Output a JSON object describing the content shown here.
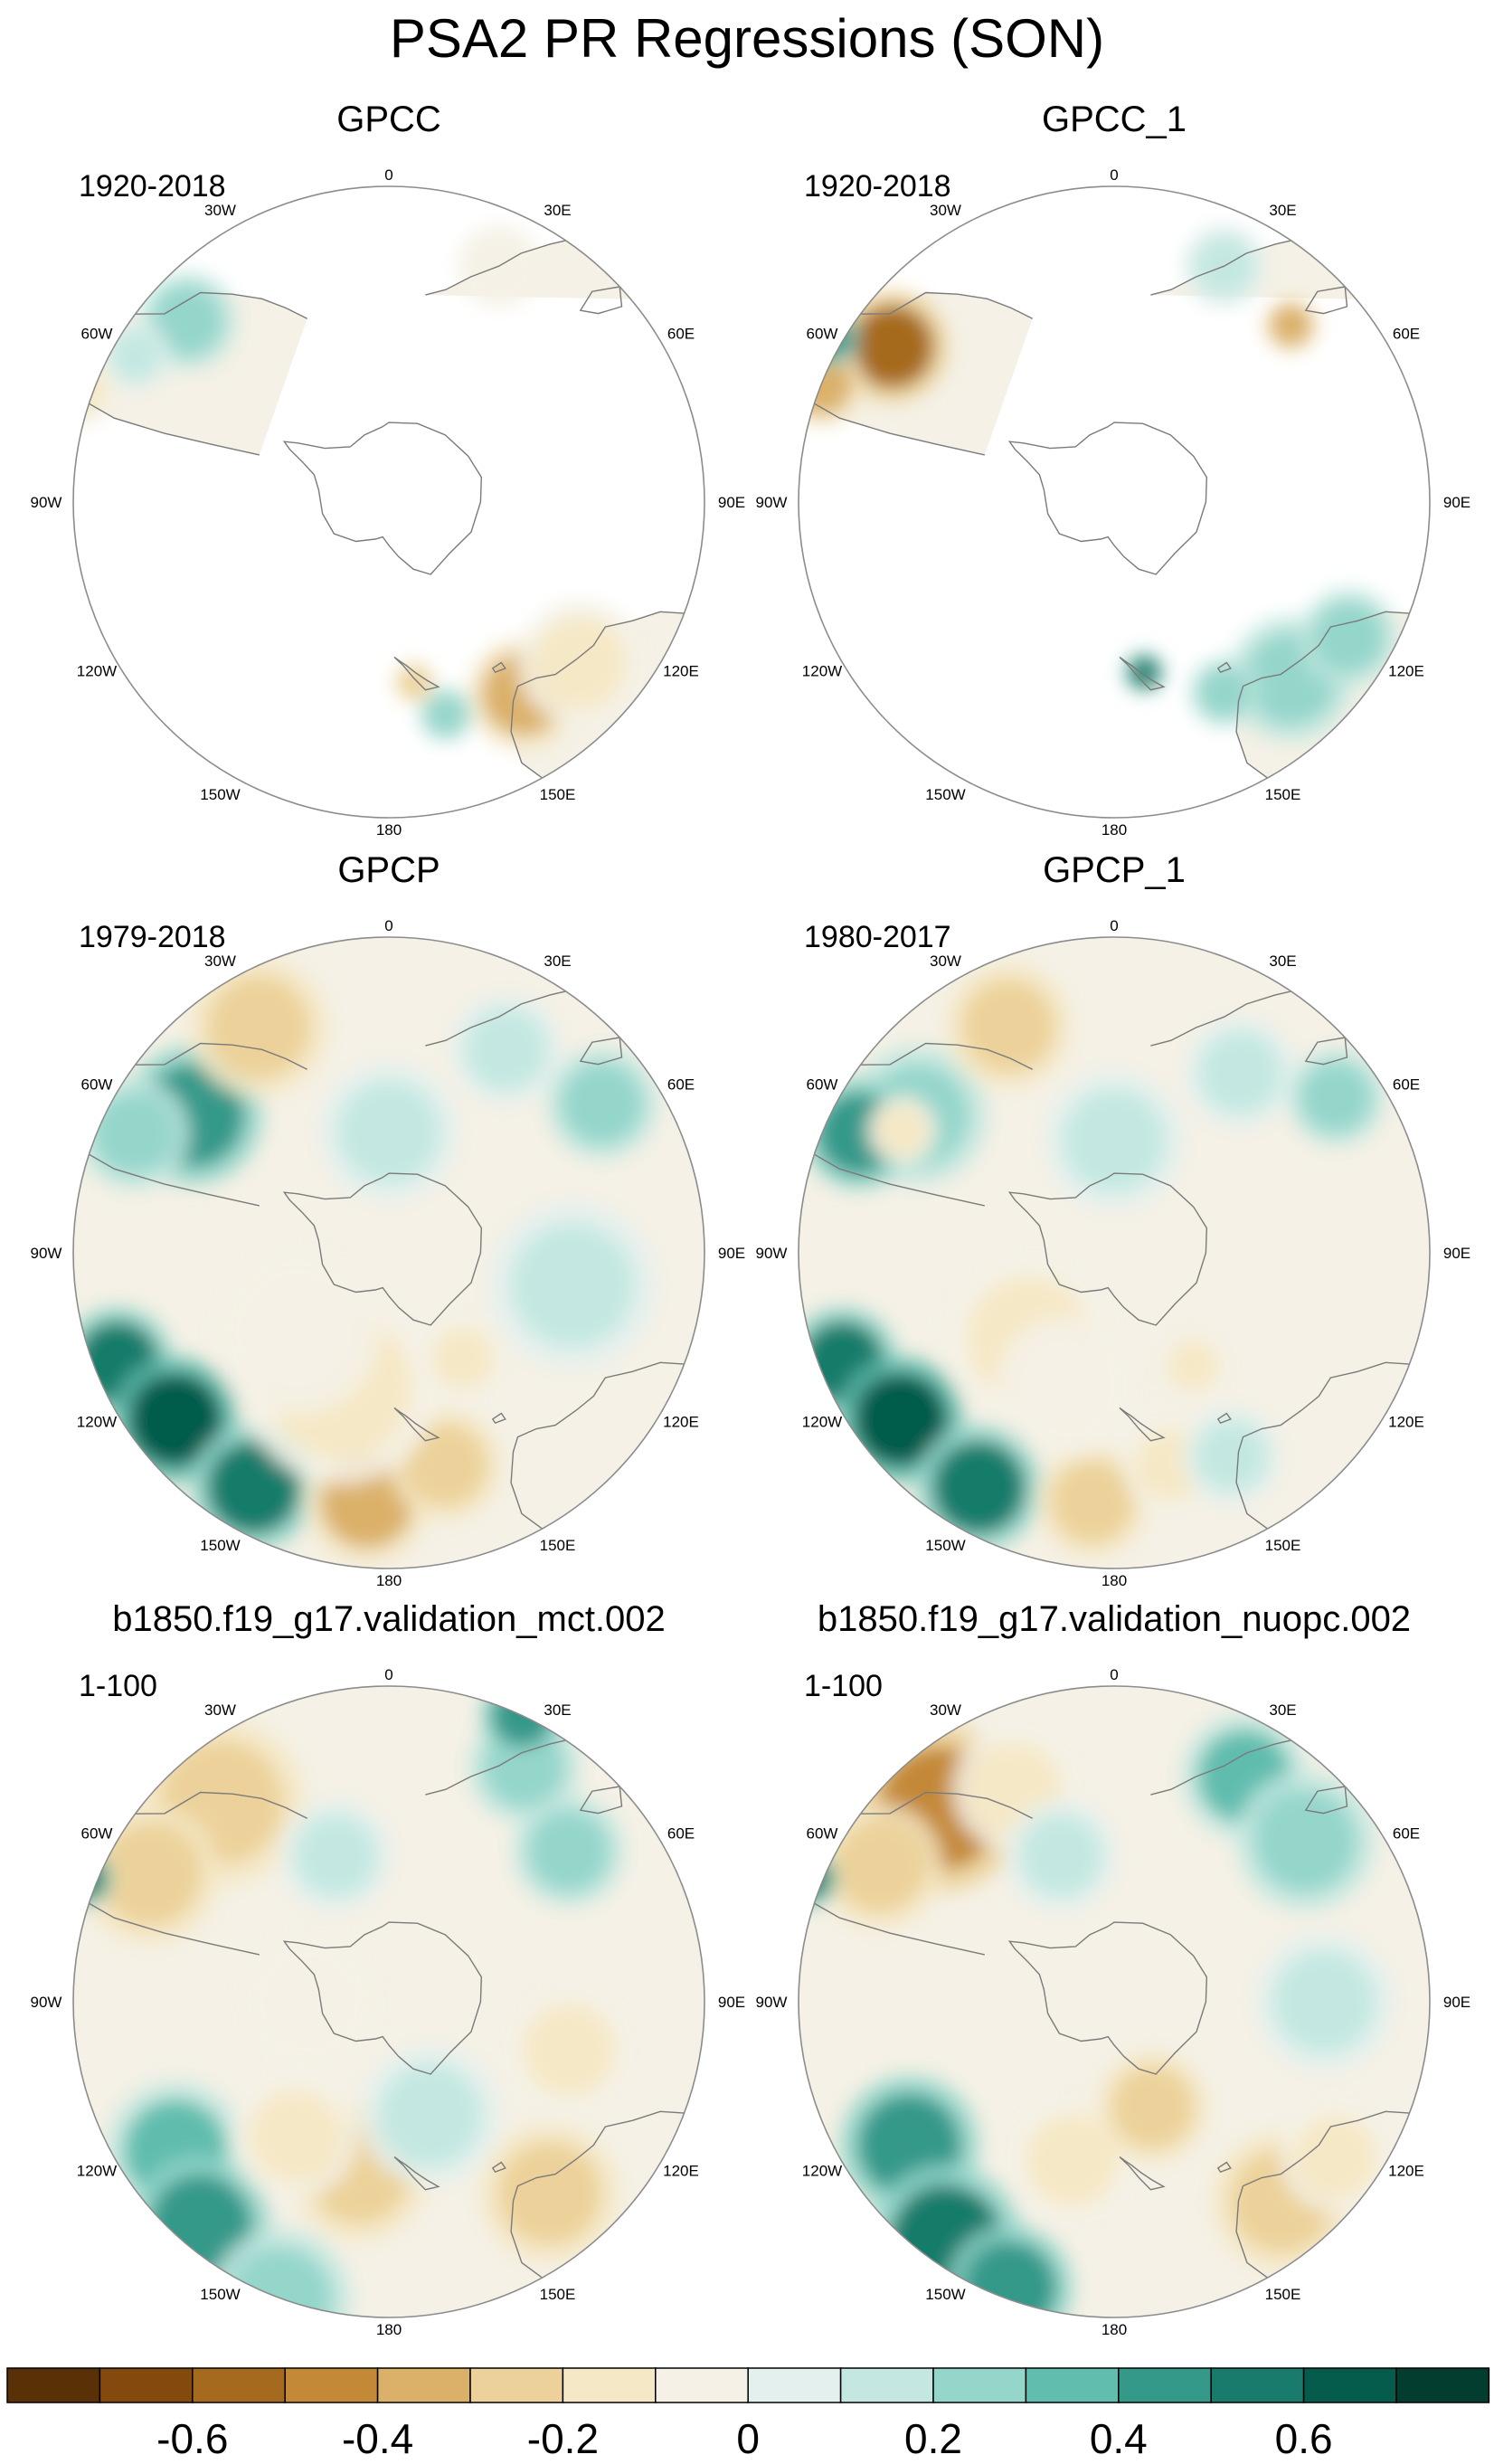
{
  "title": "PSA2 PR Regressions (SON)",
  "colors": {
    "land_outline": "#7a7a7a",
    "circle": "#8c8c8c",
    "palette": [
      "#5a3106",
      "#83490d",
      "#a66a1e",
      "#c48937",
      "#dbb16a",
      "#ecd29a",
      "#f5e8c6",
      "#f5f1e6",
      "#e4f0ee",
      "#c4e8e1",
      "#95d6cb",
      "#61bdae",
      "#35998a",
      "#187b6b",
      "#065c4c",
      "#023d30"
    ]
  },
  "colorbar": {
    "labels": [
      "-0.6",
      "-0.4",
      "-0.2",
      "0",
      "0.2",
      "0.4",
      "0.6"
    ],
    "label_after_box": [
      2,
      4,
      6,
      8,
      10,
      12,
      14
    ]
  },
  "lon_labels": [
    "0",
    "30E",
    "60E",
    "90E",
    "120E",
    "150E",
    "180",
    "150W",
    "120W",
    "90W",
    "60W",
    "30W"
  ],
  "panels": [
    {
      "name": "GPCC",
      "period": "1920-2018",
      "coverage": "land",
      "anomalies": [
        {
          "lon": 312,
          "colat": 62,
          "r": 7,
          "v": 0.3
        },
        {
          "lon": 300,
          "colat": 66,
          "r": 5,
          "v": 0.15
        },
        {
          "lon": 290,
          "colat": 72,
          "r": 5,
          "v": -0.15
        },
        {
          "lon": 145,
          "colat": 55,
          "r": 8,
          "v": -0.4
        },
        {
          "lon": 130,
          "colat": 58,
          "r": 9,
          "v": -0.15
        },
        {
          "lon": 165,
          "colat": 52,
          "r": 4,
          "v": 0.2
        },
        {
          "lon": 25,
          "colat": 60,
          "r": 6,
          "v": -0.1
        },
        {
          "lon": 172,
          "colat": 44,
          "r": 3,
          "v": -0.3
        }
      ]
    },
    {
      "name": "GPCC_1",
      "period": "1920-2018",
      "coverage": "land",
      "anomalies": [
        {
          "lon": 305,
          "colat": 62,
          "r": 8,
          "v": -0.6
        },
        {
          "lon": 292,
          "colat": 70,
          "r": 6,
          "v": -0.4
        },
        {
          "lon": 300,
          "colat": 72,
          "r": 4,
          "v": 0.4
        },
        {
          "lon": 135,
          "colat": 58,
          "r": 9,
          "v": 0.2
        },
        {
          "lon": 120,
          "colat": 62,
          "r": 7,
          "v": 0.2
        },
        {
          "lon": 150,
          "colat": 52,
          "r": 5,
          "v": 0.3
        },
        {
          "lon": 45,
          "colat": 58,
          "r": 4,
          "v": -0.4
        },
        {
          "lon": 25,
          "colat": 60,
          "r": 6,
          "v": 0.1
        },
        {
          "lon": 170,
          "colat": 42,
          "r": 3,
          "v": 0.5
        }
      ]
    },
    {
      "name": "GPCP",
      "period": "1979-2018",
      "coverage": "full",
      "anomalies": [
        {
          "lon": 305,
          "colat": 56,
          "r": 10,
          "v": 0.4
        },
        {
          "lon": 295,
          "colat": 64,
          "r": 8,
          "v": 0.3
        },
        {
          "lon": 330,
          "colat": 60,
          "r": 10,
          "v": -0.3
        },
        {
          "lon": 248,
          "colat": 66,
          "r": 8,
          "v": 0.6
        },
        {
          "lon": 232,
          "colat": 62,
          "r": 9,
          "v": 0.7
        },
        {
          "lon": 210,
          "colat": 62,
          "r": 9,
          "v": 0.5
        },
        {
          "lon": 185,
          "colat": 58,
          "r": 9,
          "v": -0.4
        },
        {
          "lon": 165,
          "colat": 52,
          "r": 8,
          "v": -0.3
        },
        {
          "lon": 200,
          "colat": 35,
          "r": 14,
          "v": -0.15
        },
        {
          "lon": 230,
          "colat": 30,
          "r": 12,
          "v": -0.1
        },
        {
          "lon": 0,
          "colat": 30,
          "r": 10,
          "v": 0.15
        },
        {
          "lon": 30,
          "colat": 55,
          "r": 8,
          "v": 0.15
        },
        {
          "lon": 55,
          "colat": 60,
          "r": 8,
          "v": 0.2
        },
        {
          "lon": 145,
          "colat": 32,
          "r": 6,
          "v": -0.2
        },
        {
          "lon": 100,
          "colat": 45,
          "r": 12,
          "v": 0.1
        }
      ]
    },
    {
      "name": "GPCP_1",
      "period": "1980-2017",
      "coverage": "full",
      "anomalies": [
        {
          "lon": 305,
          "colat": 56,
          "r": 10,
          "v": 0.3
        },
        {
          "lon": 295,
          "colat": 64,
          "r": 8,
          "v": 0.4
        },
        {
          "lon": 300,
          "colat": 57,
          "r": 5,
          "v": -0.2
        },
        {
          "lon": 335,
          "colat": 58,
          "r": 9,
          "v": -0.3
        },
        {
          "lon": 248,
          "colat": 66,
          "r": 8,
          "v": 0.6
        },
        {
          "lon": 232,
          "colat": 62,
          "r": 9,
          "v": 0.7
        },
        {
          "lon": 210,
          "colat": 62,
          "r": 9,
          "v": 0.5
        },
        {
          "lon": 185,
          "colat": 58,
          "r": 8,
          "v": -0.3
        },
        {
          "lon": 165,
          "colat": 52,
          "r": 7,
          "v": -0.2
        },
        {
          "lon": 225,
          "colat": 30,
          "r": 12,
          "v": -0.15
        },
        {
          "lon": 200,
          "colat": 35,
          "r": 10,
          "v": -0.1
        },
        {
          "lon": 0,
          "colat": 28,
          "r": 10,
          "v": 0.15
        },
        {
          "lon": 35,
          "colat": 52,
          "r": 8,
          "v": 0.15
        },
        {
          "lon": 55,
          "colat": 62,
          "r": 7,
          "v": 0.2
        },
        {
          "lon": 145,
          "colat": 34,
          "r": 5,
          "v": -0.2
        },
        {
          "lon": 150,
          "colat": 55,
          "r": 7,
          "v": 0.1
        }
      ]
    },
    {
      "name": "b1850.f19_g17.validation_mct.002",
      "period": "1-100",
      "coverage": "full",
      "anomalies": [
        {
          "lon": 320,
          "colat": 60,
          "r": 12,
          "v": -0.3
        },
        {
          "lon": 298,
          "colat": 62,
          "r": 10,
          "v": -0.25
        },
        {
          "lon": 292,
          "colat": 72,
          "r": 4,
          "v": 0.5
        },
        {
          "lon": 30,
          "colat": 62,
          "r": 8,
          "v": 0.3
        },
        {
          "lon": 25,
          "colat": 70,
          "r": 6,
          "v": 0.45
        },
        {
          "lon": 50,
          "colat": 55,
          "r": 8,
          "v": 0.2
        },
        {
          "lon": 235,
          "colat": 60,
          "r": 10,
          "v": 0.35
        },
        {
          "lon": 220,
          "colat": 66,
          "r": 10,
          "v": 0.45
        },
        {
          "lon": 200,
          "colat": 70,
          "r": 10,
          "v": 0.3
        },
        {
          "lon": 190,
          "colat": 42,
          "r": 10,
          "v": -0.3
        },
        {
          "lon": 215,
          "colat": 40,
          "r": 9,
          "v": -0.2
        },
        {
          "lon": 140,
          "colat": 58,
          "r": 10,
          "v": -0.25
        },
        {
          "lon": 105,
          "colat": 45,
          "r": 9,
          "v": -0.2
        },
        {
          "lon": 340,
          "colat": 38,
          "r": 8,
          "v": 0.15
        },
        {
          "lon": 160,
          "colat": 30,
          "r": 10,
          "v": 0.1
        },
        {
          "lon": 270,
          "colat": 20,
          "r": 10,
          "v": -0.1
        }
      ]
    },
    {
      "name": "b1850.f19_g17.validation_nuopc.002",
      "period": "1-100",
      "coverage": "full",
      "anomalies": [
        {
          "lon": 318,
          "colat": 60,
          "r": 12,
          "v": -0.5
        },
        {
          "lon": 300,
          "colat": 62,
          "r": 9,
          "v": -0.3
        },
        {
          "lon": 335,
          "colat": 55,
          "r": 9,
          "v": -0.2
        },
        {
          "lon": 292,
          "colat": 72,
          "r": 4,
          "v": 0.5
        },
        {
          "lon": 30,
          "colat": 60,
          "r": 9,
          "v": 0.35
        },
        {
          "lon": 50,
          "colat": 58,
          "r": 10,
          "v": 0.3
        },
        {
          "lon": 235,
          "colat": 58,
          "r": 10,
          "v": 0.4
        },
        {
          "lon": 215,
          "colat": 66,
          "r": 11,
          "v": 0.55
        },
        {
          "lon": 200,
          "colat": 68,
          "r": 9,
          "v": 0.4
        },
        {
          "lon": 140,
          "colat": 60,
          "r": 10,
          "v": -0.3
        },
        {
          "lon": 125,
          "colat": 62,
          "r": 8,
          "v": -0.2
        },
        {
          "lon": 195,
          "colat": 40,
          "r": 9,
          "v": -0.2
        },
        {
          "lon": 160,
          "colat": 28,
          "r": 8,
          "v": -0.25
        },
        {
          "lon": 340,
          "colat": 38,
          "r": 8,
          "v": 0.15
        },
        {
          "lon": 90,
          "colat": 50,
          "r": 10,
          "v": 0.1
        }
      ]
    }
  ]
}
